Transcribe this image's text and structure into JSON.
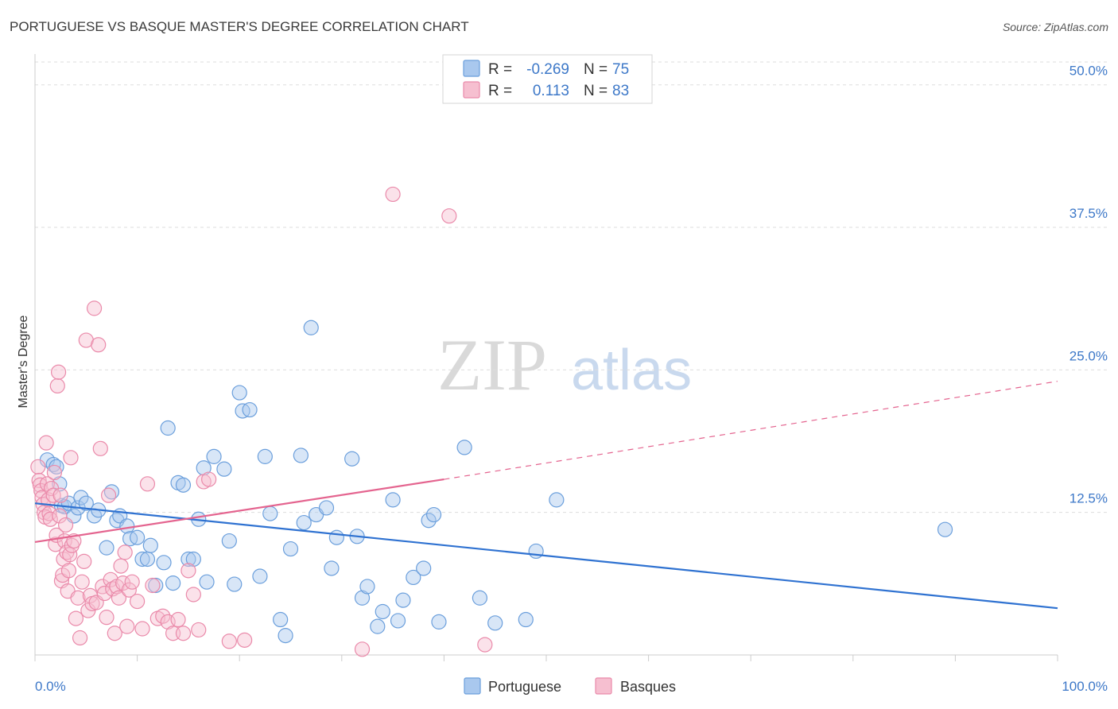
{
  "title": "PORTUGUESE VS BASQUE MASTER'S DEGREE CORRELATION CHART",
  "source": "Source: ZipAtlas.com",
  "watermark": {
    "zip": "ZIP",
    "atlas": "atlas"
  },
  "legend": {
    "rows": [
      {
        "r_label": "R =",
        "r_value": "-0.269",
        "n_label": "N =",
        "n_value": "75"
      },
      {
        "r_label": "R =",
        "r_value": "0.113",
        "n_label": "N =",
        "n_value": "83"
      }
    ]
  },
  "bottom_legend": [
    "Portuguese",
    "Basques"
  ],
  "colors": {
    "portuguese_fill": "#a9c8ee",
    "portuguese_stroke": "#6b9fdc",
    "portuguese_line": "#2f72d1",
    "basque_fill": "#f6bfd0",
    "basque_stroke": "#ea8aaa",
    "basque_line": "#e4648f",
    "tick_text": "#3d78c8",
    "grid": "#dddddd"
  },
  "chart_data": {
    "type": "scatter",
    "title": "PORTUGUESE VS BASQUE MASTER'S DEGREE CORRELATION CHART",
    "xlabel": "",
    "ylabel": "Master's Degree",
    "xlim": [
      0,
      100
    ],
    "ylim": [
      0,
      52
    ],
    "x_tick_labels": [
      "0.0%",
      "100.0%"
    ],
    "y_ticks": [
      12.5,
      25.0,
      37.5,
      50.0
    ],
    "y_tick_labels": [
      "12.5%",
      "25.0%",
      "37.5%",
      "50.0%"
    ],
    "grid": true,
    "legend_position": "top-center",
    "series": [
      {
        "name": "Portuguese",
        "r": -0.269,
        "n": 75,
        "trend": {
          "x0": 0,
          "y0": 13.3,
          "x1": 100,
          "y1": 4.1
        },
        "points": [
          [
            1.2,
            17.1
          ],
          [
            1.8,
            16.7
          ],
          [
            2.1,
            16.5
          ],
          [
            2.4,
            15.0
          ],
          [
            2.6,
            13.1
          ],
          [
            2.9,
            13.0
          ],
          [
            3.3,
            13.3
          ],
          [
            3.8,
            12.2
          ],
          [
            4.2,
            12.9
          ],
          [
            4.5,
            13.8
          ],
          [
            5.0,
            13.3
          ],
          [
            5.8,
            12.2
          ],
          [
            6.2,
            12.7
          ],
          [
            7.0,
            9.4
          ],
          [
            7.5,
            14.3
          ],
          [
            8.0,
            11.8
          ],
          [
            8.3,
            12.2
          ],
          [
            9.0,
            11.3
          ],
          [
            9.3,
            10.2
          ],
          [
            10.0,
            10.3
          ],
          [
            10.5,
            8.4
          ],
          [
            11.0,
            8.4
          ],
          [
            11.3,
            9.6
          ],
          [
            11.8,
            6.1
          ],
          [
            12.6,
            8.1
          ],
          [
            13.0,
            19.9
          ],
          [
            13.5,
            6.3
          ],
          [
            14.0,
            15.1
          ],
          [
            14.5,
            14.9
          ],
          [
            15.0,
            8.4
          ],
          [
            15.5,
            8.4
          ],
          [
            16.0,
            11.9
          ],
          [
            16.5,
            16.4
          ],
          [
            16.8,
            6.4
          ],
          [
            17.5,
            17.4
          ],
          [
            18.5,
            16.3
          ],
          [
            19.0,
            10.0
          ],
          [
            19.5,
            6.2
          ],
          [
            20.0,
            23.0
          ],
          [
            20.3,
            21.4
          ],
          [
            21.0,
            21.5
          ],
          [
            22.0,
            6.9
          ],
          [
            22.5,
            17.4
          ],
          [
            23.0,
            12.4
          ],
          [
            24.0,
            3.1
          ],
          [
            24.5,
            1.7
          ],
          [
            25.0,
            9.3
          ],
          [
            26.0,
            17.5
          ],
          [
            26.3,
            11.6
          ],
          [
            27.0,
            28.7
          ],
          [
            27.5,
            12.3
          ],
          [
            28.5,
            12.9
          ],
          [
            29.0,
            7.6
          ],
          [
            29.5,
            10.3
          ],
          [
            31.0,
            17.2
          ],
          [
            31.5,
            10.4
          ],
          [
            32.0,
            5.0
          ],
          [
            32.5,
            6.0
          ],
          [
            33.5,
            2.5
          ],
          [
            34.0,
            3.8
          ],
          [
            35.0,
            13.6
          ],
          [
            35.5,
            3.0
          ],
          [
            36.0,
            4.8
          ],
          [
            37.0,
            6.8
          ],
          [
            38.0,
            7.6
          ],
          [
            38.5,
            11.8
          ],
          [
            39.0,
            12.3
          ],
          [
            39.5,
            2.9
          ],
          [
            42.0,
            18.2
          ],
          [
            43.5,
            5.0
          ],
          [
            48.0,
            3.1
          ],
          [
            49.0,
            9.1
          ],
          [
            51.0,
            13.6
          ],
          [
            89.0,
            11.0
          ],
          [
            45.0,
            2.8
          ]
        ]
      },
      {
        "name": "Basques",
        "r": 0.113,
        "n": 83,
        "trend": {
          "x0": 0,
          "y0": 9.9,
          "x1": 40,
          "y1": 15.4
        },
        "trend_dashed": {
          "x0": 40,
          "y0": 15.4,
          "x1": 100,
          "y1": 24.0
        },
        "points": [
          [
            0.3,
            16.5
          ],
          [
            0.4,
            15.3
          ],
          [
            0.5,
            14.9
          ],
          [
            0.6,
            14.4
          ],
          [
            0.7,
            13.8
          ],
          [
            0.8,
            13.2
          ],
          [
            0.9,
            12.5
          ],
          [
            1.0,
            12.1
          ],
          [
            1.1,
            18.6
          ],
          [
            1.2,
            15.0
          ],
          [
            1.3,
            13.6
          ],
          [
            1.4,
            12.4
          ],
          [
            1.5,
            11.9
          ],
          [
            1.6,
            14.6
          ],
          [
            1.8,
            14.0
          ],
          [
            1.9,
            16.0
          ],
          [
            2.0,
            9.7
          ],
          [
            2.1,
            10.5
          ],
          [
            2.2,
            23.6
          ],
          [
            2.3,
            24.8
          ],
          [
            2.4,
            12.2
          ],
          [
            2.5,
            14.0
          ],
          [
            2.6,
            6.5
          ],
          [
            2.7,
            7.0
          ],
          [
            2.8,
            8.4
          ],
          [
            2.9,
            10.0
          ],
          [
            3.0,
            11.4
          ],
          [
            3.1,
            9.0
          ],
          [
            3.2,
            5.6
          ],
          [
            3.3,
            7.4
          ],
          [
            3.4,
            8.8
          ],
          [
            3.5,
            17.3
          ],
          [
            3.6,
            9.6
          ],
          [
            3.8,
            10.0
          ],
          [
            4.0,
            3.2
          ],
          [
            4.2,
            5.0
          ],
          [
            4.4,
            1.5
          ],
          [
            4.6,
            6.4
          ],
          [
            4.8,
            8.2
          ],
          [
            5.0,
            27.6
          ],
          [
            5.2,
            3.9
          ],
          [
            5.4,
            5.2
          ],
          [
            5.6,
            4.5
          ],
          [
            5.8,
            30.4
          ],
          [
            6.0,
            4.6
          ],
          [
            6.2,
            27.2
          ],
          [
            6.4,
            18.1
          ],
          [
            6.6,
            6.0
          ],
          [
            6.8,
            5.4
          ],
          [
            7.0,
            3.3
          ],
          [
            7.2,
            14.0
          ],
          [
            7.4,
            6.6
          ],
          [
            7.6,
            5.8
          ],
          [
            7.8,
            1.9
          ],
          [
            8.0,
            6.0
          ],
          [
            8.2,
            5.0
          ],
          [
            8.4,
            7.8
          ],
          [
            8.6,
            6.3
          ],
          [
            8.8,
            9.0
          ],
          [
            9.0,
            2.5
          ],
          [
            9.2,
            5.7
          ],
          [
            9.5,
            6.4
          ],
          [
            10.0,
            4.7
          ],
          [
            10.5,
            2.3
          ],
          [
            11.0,
            15.0
          ],
          [
            11.5,
            6.1
          ],
          [
            12.0,
            3.2
          ],
          [
            12.5,
            3.4
          ],
          [
            13.0,
            2.9
          ],
          [
            13.5,
            1.9
          ],
          [
            14.0,
            3.1
          ],
          [
            14.5,
            1.9
          ],
          [
            15.0,
            7.4
          ],
          [
            15.5,
            5.3
          ],
          [
            16.0,
            2.2
          ],
          [
            16.5,
            15.2
          ],
          [
            17.0,
            15.4
          ],
          [
            19.0,
            1.2
          ],
          [
            20.5,
            1.3
          ],
          [
            35.0,
            40.4
          ],
          [
            40.5,
            38.5
          ],
          [
            44.0,
            0.9
          ],
          [
            32.0,
            0.5
          ]
        ]
      }
    ]
  }
}
